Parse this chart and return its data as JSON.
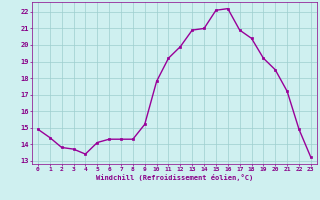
{
  "x": [
    0,
    1,
    2,
    3,
    4,
    5,
    6,
    7,
    8,
    9,
    10,
    11,
    12,
    13,
    14,
    15,
    16,
    17,
    18,
    19,
    20,
    21,
    22,
    23
  ],
  "y": [
    14.9,
    14.4,
    13.8,
    13.7,
    13.4,
    14.1,
    14.3,
    14.3,
    14.3,
    15.2,
    17.8,
    19.2,
    19.9,
    20.9,
    21.0,
    22.1,
    22.2,
    20.9,
    20.4,
    19.2,
    18.5,
    17.2,
    14.9,
    13.2
  ],
  "line_color": "#990099",
  "marker": "s",
  "marker_size": 1.8,
  "xlabel": "Windchill (Refroidissement éolien,°C)",
  "ylabel": "",
  "ylim": [
    12.8,
    22.6
  ],
  "xlim": [
    -0.5,
    23.5
  ],
  "yticks": [
    13,
    14,
    15,
    16,
    17,
    18,
    19,
    20,
    21,
    22
  ],
  "xticks": [
    0,
    1,
    2,
    3,
    4,
    5,
    6,
    7,
    8,
    9,
    10,
    11,
    12,
    13,
    14,
    15,
    16,
    17,
    18,
    19,
    20,
    21,
    22,
    23
  ],
  "bg_color": "#cff0f0",
  "grid_color": "#9ecece",
  "xlabel_color": "#880088",
  "tick_color": "#880088",
  "line_width": 1.0
}
